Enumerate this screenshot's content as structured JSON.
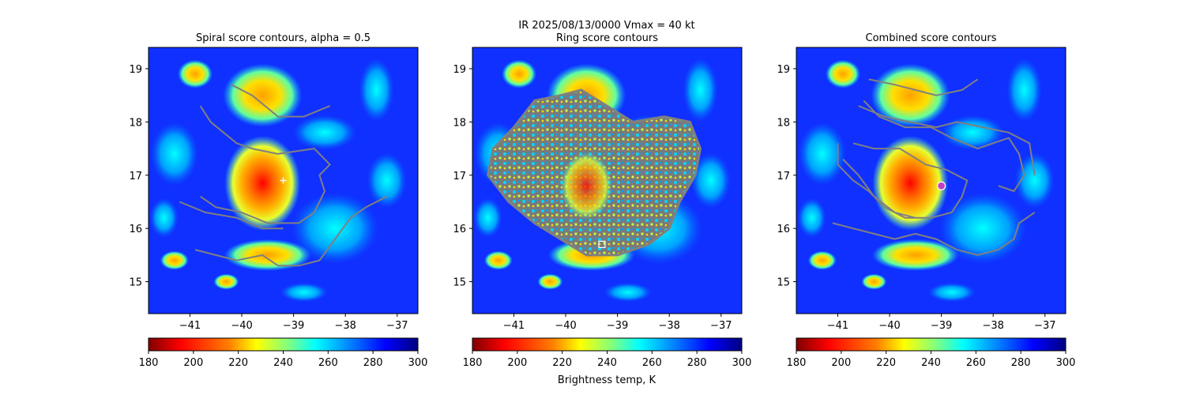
{
  "suptitle": {
    "line1": "IR  2025/08/13/0000    Vmax = 40 kt"
  },
  "colorbar_label": "Brightness temp, K",
  "colors": {
    "contour": "#808080",
    "jet": [
      "#800000",
      "#ff0000",
      "#ff8000",
      "#ffff00",
      "#80ff80",
      "#00ffff",
      "#0080ff",
      "#0000ff",
      "#000080"
    ]
  },
  "chart_data": [
    {
      "type": "heatmap",
      "title": "Spiral score contours, alpha =  0.5",
      "xlim": [
        -41.8,
        -36.6
      ],
      "ylim": [
        14.4,
        19.4
      ],
      "xticks": [
        -41,
        -40,
        -39,
        -38,
        -37
      ],
      "xtick_labels": [
        "−41",
        "−40",
        "−39",
        "−38",
        "−37"
      ],
      "yticks": [
        15,
        16,
        17,
        18,
        19
      ],
      "ytick_labels": [
        "15",
        "16",
        "17",
        "18",
        "19"
      ],
      "colorbar": {
        "range": [
          180,
          300
        ],
        "ticks": [
          180,
          200,
          220,
          240,
          260,
          280,
          300
        ],
        "cmap": "jet_r"
      },
      "marker": {
        "type": "plus",
        "lon": -39.2,
        "lat": 16.9
      },
      "contours": [
        [
          [
            -40.8,
            16.6
          ],
          [
            -40.5,
            16.4
          ],
          [
            -40.0,
            16.3
          ],
          [
            -39.5,
            16.1
          ],
          [
            -38.9,
            16.1
          ],
          [
            -38.6,
            16.3
          ],
          [
            -38.4,
            16.7
          ],
          [
            -38.5,
            17.0
          ],
          [
            -38.3,
            17.2
          ],
          [
            -38.6,
            17.5
          ],
          [
            -39.3,
            17.4
          ],
          [
            -39.8,
            17.5
          ],
          [
            -40.1,
            17.6
          ],
          [
            -40.6,
            18.0
          ],
          [
            -40.8,
            18.3
          ]
        ],
        [
          [
            -41.2,
            16.5
          ],
          [
            -40.7,
            16.3
          ],
          [
            -40.1,
            16.2
          ],
          [
            -39.6,
            16.0
          ],
          [
            -39.2,
            16.0
          ]
        ],
        [
          [
            -40.2,
            18.7
          ],
          [
            -39.8,
            18.5
          ],
          [
            -39.3,
            18.1
          ],
          [
            -38.8,
            18.1
          ],
          [
            -38.3,
            18.3
          ]
        ],
        [
          [
            -40.9,
            15.6
          ],
          [
            -40.5,
            15.5
          ],
          [
            -40.1,
            15.4
          ],
          [
            -39.6,
            15.5
          ],
          [
            -39.3,
            15.3
          ],
          [
            -38.9,
            15.3
          ],
          [
            -38.5,
            15.4
          ],
          [
            -38.2,
            15.8
          ],
          [
            -37.9,
            16.2
          ],
          [
            -37.6,
            16.4
          ],
          [
            -37.2,
            16.6
          ]
        ]
      ]
    },
    {
      "type": "heatmap",
      "title": "Ring score contours",
      "xlim": [
        -41.8,
        -36.6
      ],
      "ylim": [
        14.4,
        19.4
      ],
      "xticks": [
        -41,
        -40,
        -39,
        -38,
        -37
      ],
      "xtick_labels": [
        "−41",
        "−40",
        "−39",
        "−38",
        "−37"
      ],
      "yticks": [
        15,
        16,
        17,
        18,
        19
      ],
      "ytick_labels": [
        "15",
        "16",
        "17",
        "18",
        "19"
      ],
      "colorbar": {
        "range": [
          180,
          300
        ],
        "ticks": [
          180,
          200,
          220,
          240,
          260,
          280,
          300
        ],
        "cmap": "jet_r"
      },
      "marker": {
        "type": "square",
        "lon": -39.3,
        "lat": 15.7
      },
      "ring_region": [
        [
          -41.0,
          17.9
        ],
        [
          -40.6,
          18.4
        ],
        [
          -40.1,
          18.5
        ],
        [
          -39.7,
          18.6
        ],
        [
          -39.2,
          18.3
        ],
        [
          -38.7,
          18.0
        ],
        [
          -38.1,
          18.1
        ],
        [
          -37.6,
          18.0
        ],
        [
          -37.4,
          17.5
        ],
        [
          -37.5,
          17.0
        ],
        [
          -37.8,
          16.5
        ],
        [
          -38.0,
          16.0
        ],
        [
          -38.4,
          15.7
        ],
        [
          -39.0,
          15.5
        ],
        [
          -39.6,
          15.5
        ],
        [
          -40.1,
          15.8
        ],
        [
          -40.6,
          16.1
        ],
        [
          -41.1,
          16.5
        ],
        [
          -41.5,
          17.0
        ],
        [
          -41.4,
          17.5
        ]
      ]
    },
    {
      "type": "heatmap",
      "title": "Combined score contours",
      "xlim": [
        -41.8,
        -36.6
      ],
      "ylim": [
        14.4,
        19.4
      ],
      "xticks": [
        -41,
        -40,
        -39,
        -38,
        -37
      ],
      "xtick_labels": [
        "−41",
        "−40",
        "−39",
        "−38",
        "−37"
      ],
      "yticks": [
        15,
        16,
        17,
        18,
        19
      ],
      "ytick_labels": [
        "15",
        "16",
        "17",
        "18",
        "19"
      ],
      "colorbar": {
        "range": [
          180,
          300
        ],
        "ticks": [
          180,
          200,
          220,
          240,
          260,
          280,
          300
        ],
        "cmap": "jet_r"
      },
      "marker": {
        "type": "circle",
        "lon": -39.0,
        "lat": 16.8
      },
      "contours": [
        [
          [
            -40.5,
            18.4
          ],
          [
            -40.2,
            18.1
          ],
          [
            -39.7,
            17.9
          ],
          [
            -39.2,
            17.9
          ],
          [
            -38.8,
            17.7
          ],
          [
            -38.3,
            17.5
          ],
          [
            -38.0,
            17.6
          ],
          [
            -37.7,
            17.7
          ],
          [
            -37.5,
            17.4
          ],
          [
            -37.4,
            17.0
          ],
          [
            -37.6,
            16.7
          ],
          [
            -37.9,
            16.8
          ]
        ],
        [
          [
            -40.6,
            18.3
          ],
          [
            -40.1,
            18.1
          ],
          [
            -39.6,
            18.0
          ],
          [
            -39.1,
            17.9
          ],
          [
            -38.7,
            18.0
          ],
          [
            -38.2,
            17.9
          ],
          [
            -37.7,
            17.8
          ],
          [
            -37.3,
            17.6
          ],
          [
            -37.2,
            17.0
          ]
        ],
        [
          [
            -40.7,
            17.6
          ],
          [
            -40.3,
            17.5
          ],
          [
            -39.8,
            17.5
          ],
          [
            -39.3,
            17.2
          ],
          [
            -38.9,
            17.1
          ],
          [
            -38.5,
            16.9
          ],
          [
            -38.6,
            16.6
          ],
          [
            -38.8,
            16.3
          ],
          [
            -39.2,
            16.2
          ],
          [
            -39.7,
            16.2
          ],
          [
            -40.1,
            16.4
          ],
          [
            -40.4,
            16.7
          ],
          [
            -40.7,
            16.9
          ],
          [
            -41.0,
            17.2
          ],
          [
            -41.0,
            17.6
          ]
        ],
        [
          [
            -40.9,
            17.3
          ],
          [
            -40.6,
            17.0
          ],
          [
            -40.3,
            16.6
          ],
          [
            -39.9,
            16.3
          ],
          [
            -39.5,
            16.2
          ]
        ],
        [
          [
            -41.1,
            16.1
          ],
          [
            -40.7,
            16.0
          ],
          [
            -40.3,
            15.9
          ],
          [
            -39.9,
            15.8
          ],
          [
            -39.5,
            15.9
          ],
          [
            -39.1,
            15.8
          ],
          [
            -38.7,
            15.6
          ],
          [
            -38.3,
            15.5
          ],
          [
            -37.9,
            15.6
          ],
          [
            -37.6,
            15.8
          ],
          [
            -37.5,
            16.1
          ],
          [
            -37.2,
            16.3
          ]
        ],
        [
          [
            -40.4,
            18.8
          ],
          [
            -39.9,
            18.7
          ],
          [
            -39.5,
            18.6
          ],
          [
            -39.1,
            18.5
          ],
          [
            -38.6,
            18.6
          ],
          [
            -38.3,
            18.8
          ]
        ]
      ]
    }
  ]
}
